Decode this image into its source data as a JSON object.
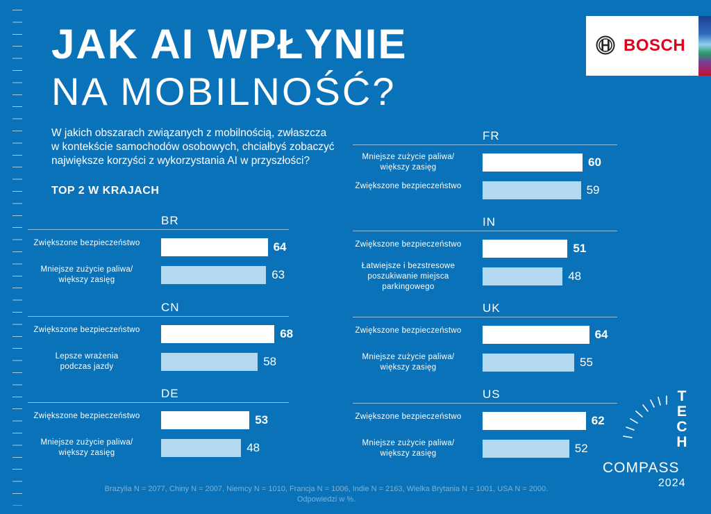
{
  "title": {
    "line1": "JAK AI WPŁYNIE",
    "line2": "NA MOBILNOŚĆ?"
  },
  "question": [
    "W jakich obszarach związanych z mobilnością, zwłaszcza",
    "w kontekście samochodów osobowych, chciałbyś zobaczyć",
    "największe korzyści z wykorzystania AI w przyszłości?"
  ],
  "section_heading": "TOP 2 W KRAJACH",
  "brand": {
    "name": "BOSCH"
  },
  "tech_letters": [
    "T",
    "E",
    "C",
    "H"
  ],
  "compass": "COMPASS",
  "year": "2024",
  "footnote": [
    "Brazylia N = 2077, Chiny N = 2007, Niemcy N = 1010, Francja N = 1006, Indie N = 2163, Wielka Brytania N = 1001, USA N = 2000.",
    "Odpowiedzi w %."
  ],
  "colors": {
    "background": "#0a72b8",
    "bar_first": "#ffffff",
    "bar_second": "#b3d9f2",
    "brand_red": "#e2001a"
  },
  "chart_data": [
    {
      "type": "bar",
      "orientation": "horizontal",
      "title": "BR",
      "xlim": [
        0,
        100
      ],
      "categories": [
        [
          "Zwiększone bezpieczeństwo"
        ],
        [
          "Mniejsze zużycie paliwa/",
          "większy zasięg"
        ]
      ],
      "values": [
        64,
        63
      ]
    },
    {
      "type": "bar",
      "orientation": "horizontal",
      "title": "CN",
      "xlim": [
        0,
        100
      ],
      "categories": [
        [
          "Zwiększone bezpieczeństwo"
        ],
        [
          "Lepsze wrażenia",
          "podczas jazdy"
        ]
      ],
      "values": [
        68,
        58
      ]
    },
    {
      "type": "bar",
      "orientation": "horizontal",
      "title": "DE",
      "xlim": [
        0,
        100
      ],
      "categories": [
        [
          "Zwiększone bezpieczeństwo"
        ],
        [
          "Mniejsze zużycie paliwa/",
          "większy zasięg"
        ]
      ],
      "values": [
        53,
        48
      ]
    },
    {
      "type": "bar",
      "orientation": "horizontal",
      "title": "FR",
      "xlim": [
        0,
        100
      ],
      "categories": [
        [
          "Mniejsze zużycie paliwa/",
          "większy zasięg"
        ],
        [
          "Zwiększone bezpieczeństwo"
        ]
      ],
      "values": [
        60,
        59
      ]
    },
    {
      "type": "bar",
      "orientation": "horizontal",
      "title": "IN",
      "xlim": [
        0,
        100
      ],
      "categories": [
        [
          "Zwiększone bezpieczeństwo"
        ],
        [
          "Łatwiejsze i bezstresowe",
          "poszukiwanie miejsca",
          "parkingowego"
        ]
      ],
      "values": [
        51,
        48
      ]
    },
    {
      "type": "bar",
      "orientation": "horizontal",
      "title": "UK",
      "xlim": [
        0,
        100
      ],
      "categories": [
        [
          "Zwiększone bezpieczeństwo"
        ],
        [
          "Mniejsze zużycie paliwa/",
          "większy zasięg"
        ]
      ],
      "values": [
        64,
        55
      ]
    },
    {
      "type": "bar",
      "orientation": "horizontal",
      "title": "US",
      "xlim": [
        0,
        100
      ],
      "categories": [
        [
          "Zwiększone bezpieczeństwo"
        ],
        [
          "Mniejsze zużycie paliwa/",
          "większy zasięg"
        ]
      ],
      "values": [
        62,
        52
      ]
    }
  ]
}
